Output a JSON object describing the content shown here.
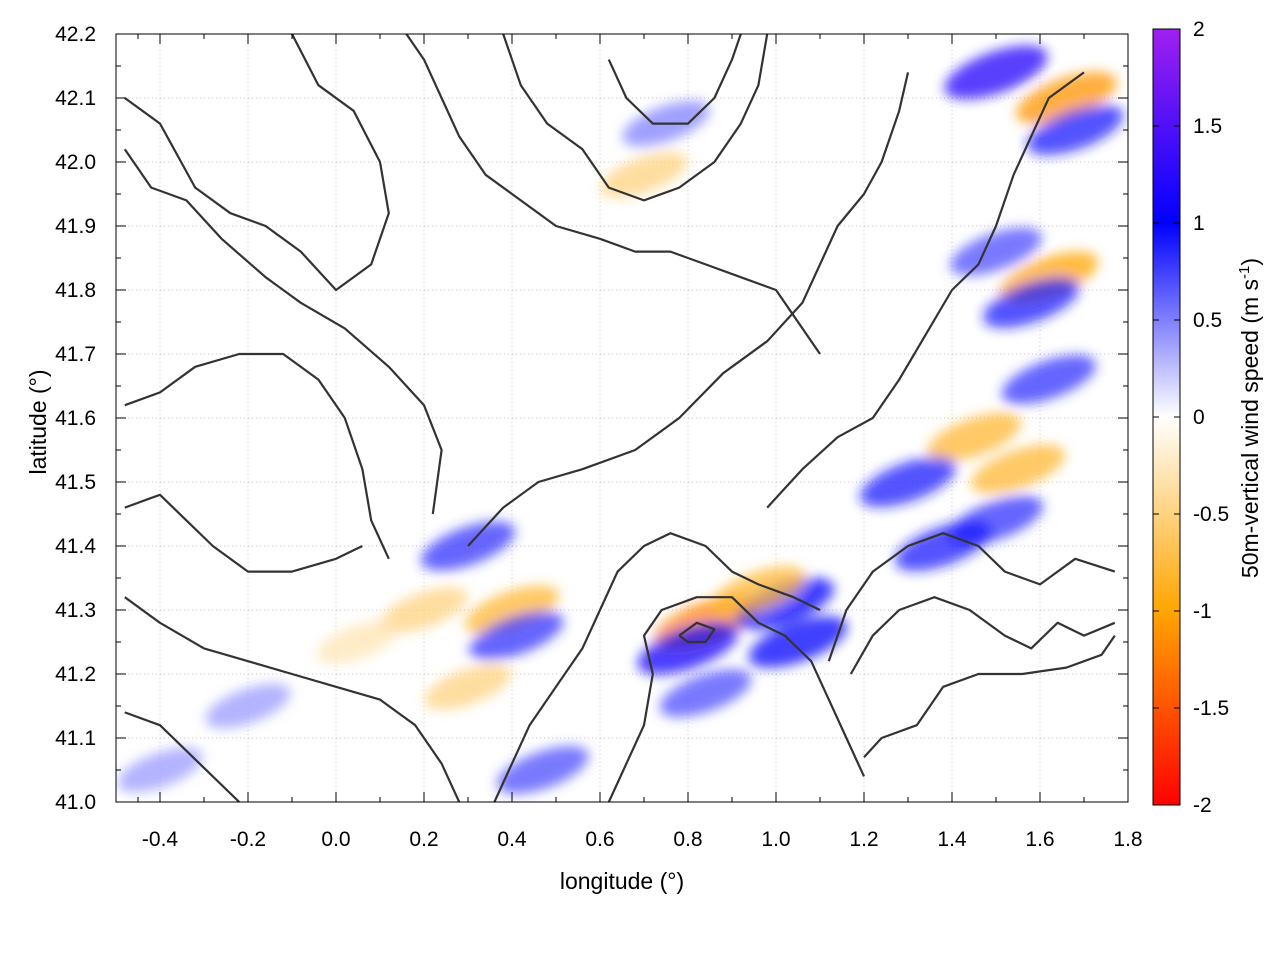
{
  "chart_data": {
    "type": "heatmap",
    "title": "",
    "xlabel": "longitude (°)",
    "ylabel": "latitude (°)",
    "colorbar_label_main": "50m-vertical wind speed (m s",
    "colorbar_label_sup": "-1",
    "colorbar_label_close": ")",
    "xlim": [
      -0.5,
      1.8
    ],
    "ylim": [
      41.0,
      42.2
    ],
    "clim": [
      -2,
      2
    ],
    "x_ticks": [
      -0.4,
      -0.2,
      0.0,
      0.2,
      0.4,
      0.6,
      0.8,
      1.0,
      1.2,
      1.4,
      1.6,
      1.8
    ],
    "x_tick_labels": [
      "-0.4",
      "-0.2",
      "0.0",
      "0.2",
      "0.4",
      "0.6",
      "0.8",
      "1.0",
      "1.2",
      "1.4",
      "1.6",
      "1.8"
    ],
    "y_ticks": [
      41.0,
      41.1,
      41.2,
      41.3,
      41.4,
      41.5,
      41.6,
      41.7,
      41.8,
      41.9,
      42.0,
      42.1,
      42.2
    ],
    "y_tick_labels": [
      "41.0",
      "41.1",
      "41.2",
      "41.3",
      "41.4",
      "41.5",
      "41.6",
      "41.7",
      "41.8",
      "41.9",
      "42.0",
      "42.1",
      "42.2"
    ],
    "colorbar_ticks": [
      -2,
      -1.5,
      -1,
      -0.5,
      0,
      0.5,
      1,
      1.5,
      2
    ],
    "colorbar_tick_labels": [
      "-2",
      "-1.5",
      "-1",
      "-0.5",
      "0",
      "0.5",
      "1",
      "1.5",
      "2"
    ],
    "colormap": [
      {
        "value": -2,
        "color": "#ff0000"
      },
      {
        "value": -1,
        "color": "#ffa500"
      },
      {
        "value": 0,
        "color": "#ffffff"
      },
      {
        "value": 1,
        "color": "#0000ff"
      },
      {
        "value": 2,
        "color": "#a020f0"
      }
    ],
    "grid": true,
    "contour_color": "#333333",
    "hotspots": [
      {
        "lon": 1.5,
        "lat": 42.14,
        "value": 1.2
      },
      {
        "lon": 1.66,
        "lat": 42.1,
        "value": -1.1
      },
      {
        "lon": 1.68,
        "lat": 42.05,
        "value": 0.9
      },
      {
        "lon": 1.62,
        "lat": 41.82,
        "value": -1.0
      },
      {
        "lon": 1.58,
        "lat": 41.78,
        "value": 0.9
      },
      {
        "lon": 1.5,
        "lat": 41.86,
        "value": 0.7
      },
      {
        "lon": 1.62,
        "lat": 41.66,
        "value": 0.8
      },
      {
        "lon": 1.45,
        "lat": 41.57,
        "value": -0.8
      },
      {
        "lon": 1.3,
        "lat": 41.5,
        "value": 0.9
      },
      {
        "lon": 1.55,
        "lat": 41.52,
        "value": -0.8
      },
      {
        "lon": 1.5,
        "lat": 41.44,
        "value": 0.8
      },
      {
        "lon": 1.38,
        "lat": 41.4,
        "value": 0.9
      },
      {
        "lon": 0.84,
        "lat": 41.28,
        "value": -1.2
      },
      {
        "lon": 0.8,
        "lat": 41.24,
        "value": 1.1
      },
      {
        "lon": 1.02,
        "lat": 41.31,
        "value": 1.0
      },
      {
        "lon": 1.05,
        "lat": 41.25,
        "value": 1.0
      },
      {
        "lon": 0.96,
        "lat": 41.33,
        "value": -0.8
      },
      {
        "lon": 0.84,
        "lat": 41.17,
        "value": 0.7
      },
      {
        "lon": 0.3,
        "lat": 41.4,
        "value": 0.8
      },
      {
        "lon": 0.4,
        "lat": 41.3,
        "value": -0.8
      },
      {
        "lon": 0.41,
        "lat": 41.26,
        "value": 0.8
      },
      {
        "lon": 0.2,
        "lat": 41.3,
        "value": -0.5
      },
      {
        "lon": 0.47,
        "lat": 41.05,
        "value": 0.7
      },
      {
        "lon": 0.3,
        "lat": 41.18,
        "value": -0.5
      },
      {
        "lon": 0.75,
        "lat": 42.06,
        "value": 0.5
      },
      {
        "lon": 0.7,
        "lat": 41.98,
        "value": -0.5
      },
      {
        "lon": -0.4,
        "lat": 41.05,
        "value": 0.4
      },
      {
        "lon": -0.2,
        "lat": 41.15,
        "value": 0.4
      },
      {
        "lon": 0.05,
        "lat": 41.25,
        "value": -0.3
      }
    ],
    "contours": [
      [
        [
          1.2,
          41.07
        ],
        [
          1.24,
          41.1
        ],
        [
          1.32,
          41.12
        ],
        [
          1.38,
          41.18
        ],
        [
          1.46,
          41.2
        ],
        [
          1.56,
          41.2
        ],
        [
          1.66,
          41.21
        ],
        [
          1.74,
          41.23
        ],
        [
          1.77,
          41.26
        ]
      ],
      [
        [
          1.17,
          41.2
        ],
        [
          1.22,
          41.26
        ],
        [
          1.28,
          41.3
        ],
        [
          1.36,
          41.32
        ],
        [
          1.44,
          41.3
        ],
        [
          1.52,
          41.26
        ],
        [
          1.58,
          41.24
        ],
        [
          1.64,
          41.28
        ],
        [
          1.7,
          41.26
        ],
        [
          1.77,
          41.28
        ]
      ],
      [
        [
          1.12,
          41.22
        ],
        [
          1.16,
          41.3
        ],
        [
          1.22,
          41.36
        ],
        [
          1.3,
          41.4
        ],
        [
          1.38,
          41.42
        ],
        [
          1.46,
          41.4
        ],
        [
          1.52,
          41.36
        ],
        [
          1.6,
          41.34
        ],
        [
          1.68,
          41.38
        ],
        [
          1.77,
          41.36
        ]
      ],
      [
        [
          0.98,
          41.46
        ],
        [
          1.06,
          41.52
        ],
        [
          1.14,
          41.57
        ],
        [
          1.22,
          41.6
        ],
        [
          1.28,
          41.66
        ],
        [
          1.34,
          41.73
        ],
        [
          1.4,
          41.8
        ],
        [
          1.46,
          41.84
        ],
        [
          1.5,
          41.9
        ],
        [
          1.54,
          41.98
        ],
        [
          1.58,
          42.04
        ],
        [
          1.62,
          42.1
        ],
        [
          1.7,
          42.14
        ]
      ],
      [
        [
          0.3,
          41.4
        ],
        [
          0.38,
          41.46
        ],
        [
          0.46,
          41.5
        ],
        [
          0.56,
          41.52
        ],
        [
          0.68,
          41.55
        ],
        [
          0.78,
          41.6
        ],
        [
          0.88,
          41.67
        ],
        [
          0.98,
          41.72
        ],
        [
          1.06,
          41.78
        ],
        [
          1.1,
          41.84
        ],
        [
          1.14,
          41.9
        ],
        [
          1.2,
          41.95
        ],
        [
          1.24,
          42.0
        ],
        [
          1.28,
          42.08
        ],
        [
          1.3,
          42.14
        ]
      ],
      [
        [
          0.22,
          41.45
        ],
        [
          0.24,
          41.55
        ],
        [
          0.2,
          41.62
        ],
        [
          0.12,
          41.68
        ],
        [
          0.02,
          41.74
        ],
        [
          -0.08,
          41.78
        ],
        [
          -0.16,
          41.82
        ],
        [
          -0.26,
          41.88
        ],
        [
          -0.34,
          41.94
        ],
        [
          -0.42,
          41.96
        ],
        [
          -0.48,
          42.02
        ]
      ],
      [
        [
          -0.48,
          41.62
        ],
        [
          -0.4,
          41.64
        ],
        [
          -0.32,
          41.68
        ],
        [
          -0.22,
          41.7
        ],
        [
          -0.12,
          41.7
        ],
        [
          -0.04,
          41.66
        ],
        [
          0.02,
          41.6
        ],
        [
          0.06,
          41.52
        ],
        [
          0.08,
          41.44
        ],
        [
          0.12,
          41.38
        ]
      ],
      [
        [
          -0.48,
          41.46
        ],
        [
          -0.4,
          41.48
        ],
        [
          -0.34,
          41.44
        ],
        [
          -0.28,
          41.4
        ],
        [
          -0.2,
          41.36
        ],
        [
          -0.1,
          41.36
        ],
        [
          0.0,
          41.38
        ],
        [
          0.06,
          41.4
        ]
      ],
      [
        [
          -0.48,
          41.32
        ],
        [
          -0.4,
          41.28
        ],
        [
          -0.3,
          41.24
        ],
        [
          -0.2,
          41.22
        ],
        [
          -0.1,
          41.2
        ],
        [
          0.0,
          41.18
        ],
        [
          0.1,
          41.16
        ],
        [
          0.18,
          41.12
        ],
        [
          0.24,
          41.06
        ],
        [
          0.28,
          41.0
        ]
      ],
      [
        [
          -0.48,
          41.14
        ],
        [
          -0.4,
          41.12
        ],
        [
          -0.34,
          41.08
        ],
        [
          -0.28,
          41.04
        ],
        [
          -0.22,
          41.0
        ]
      ],
      [
        [
          0.36,
          41.0
        ],
        [
          0.4,
          41.06
        ],
        [
          0.44,
          41.12
        ],
        [
          0.5,
          41.18
        ],
        [
          0.56,
          41.24
        ],
        [
          0.6,
          41.3
        ],
        [
          0.64,
          41.36
        ],
        [
          0.7,
          41.4
        ],
        [
          0.76,
          41.42
        ],
        [
          0.84,
          41.4
        ],
        [
          0.9,
          41.36
        ],
        [
          0.96,
          41.34
        ],
        [
          1.04,
          41.32
        ],
        [
          1.1,
          41.3
        ]
      ],
      [
        [
          0.62,
          41.0
        ],
        [
          0.66,
          41.06
        ],
        [
          0.7,
          41.12
        ],
        [
          0.72,
          41.2
        ],
        [
          0.7,
          41.26
        ],
        [
          0.74,
          41.3
        ],
        [
          0.82,
          41.32
        ],
        [
          0.9,
          41.32
        ],
        [
          0.96,
          41.28
        ],
        [
          1.02,
          41.26
        ],
        [
          1.08,
          41.22
        ],
        [
          1.12,
          41.16
        ],
        [
          1.16,
          41.1
        ],
        [
          1.2,
          41.04
        ]
      ],
      [
        [
          0.78,
          41.26
        ],
        [
          0.82,
          41.28
        ],
        [
          0.86,
          41.27
        ],
        [
          0.84,
          41.25
        ],
        [
          0.8,
          41.25
        ],
        [
          0.78,
          41.26
        ]
      ],
      [
        [
          0.16,
          42.2
        ],
        [
          0.2,
          42.16
        ],
        [
          0.24,
          42.1
        ],
        [
          0.28,
          42.04
        ],
        [
          0.34,
          41.98
        ],
        [
          0.42,
          41.94
        ],
        [
          0.5,
          41.9
        ],
        [
          0.6,
          41.88
        ],
        [
          0.68,
          41.86
        ],
        [
          0.76,
          41.86
        ],
        [
          0.84,
          41.84
        ],
        [
          0.92,
          41.82
        ],
        [
          1.0,
          41.8
        ],
        [
          1.06,
          41.74
        ],
        [
          1.1,
          41.7
        ]
      ],
      [
        [
          0.38,
          42.2
        ],
        [
          0.42,
          42.12
        ],
        [
          0.48,
          42.06
        ],
        [
          0.56,
          42.02
        ],
        [
          0.62,
          41.96
        ],
        [
          0.7,
          41.94
        ],
        [
          0.78,
          41.96
        ],
        [
          0.86,
          42.0
        ],
        [
          0.92,
          42.06
        ],
        [
          0.96,
          42.12
        ],
        [
          0.98,
          42.2
        ]
      ],
      [
        [
          0.62,
          42.16
        ],
        [
          0.66,
          42.1
        ],
        [
          0.72,
          42.06
        ],
        [
          0.8,
          42.06
        ],
        [
          0.86,
          42.1
        ],
        [
          0.9,
          42.16
        ],
        [
          0.92,
          42.2
        ]
      ],
      [
        [
          -0.1,
          42.2
        ],
        [
          -0.04,
          42.12
        ],
        [
          0.04,
          42.08
        ],
        [
          0.1,
          42.0
        ],
        [
          0.12,
          41.92
        ],
        [
          0.08,
          41.84
        ],
        [
          0.0,
          41.8
        ],
        [
          -0.08,
          41.86
        ],
        [
          -0.16,
          41.9
        ],
        [
          -0.24,
          41.92
        ],
        [
          -0.32,
          41.96
        ],
        [
          -0.4,
          42.06
        ],
        [
          -0.48,
          42.1
        ]
      ]
    ]
  }
}
